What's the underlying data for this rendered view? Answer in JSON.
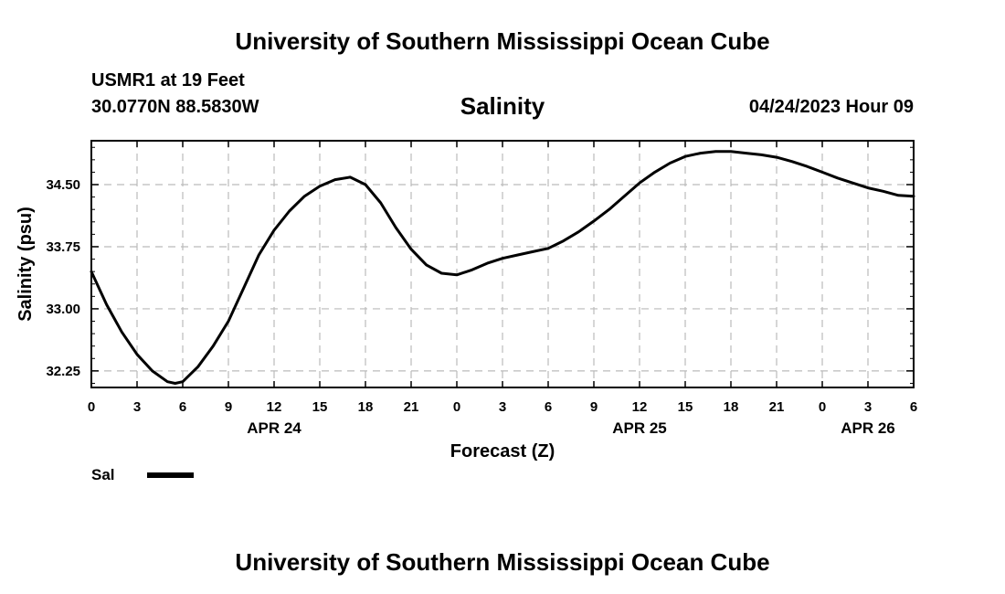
{
  "header": {
    "title": "University of Southern Mississippi Ocean Cube",
    "station": "USMR1 at 19 Feet",
    "coords": "30.0770N  88.5830W",
    "chart_title": "Salinity",
    "datetime": "04/24/2023 Hour 09"
  },
  "footer": {
    "title": "University of Southern Mississippi Ocean Cube"
  },
  "legend": {
    "label": "Sal"
  },
  "colors": {
    "line": "#000000",
    "grid": "#bbbbbb",
    "frame": "#000000"
  },
  "chart_data": {
    "type": "line",
    "title": "Salinity",
    "xlabel": "Forecast (Z)",
    "ylabel": "Salinity (psu)",
    "xlim": [
      0,
      54
    ],
    "ylim": [
      32.05,
      35.03
    ],
    "x_tick_hours": [
      0,
      3,
      6,
      9,
      12,
      15,
      18,
      21,
      24,
      27,
      30,
      33,
      36,
      39,
      42,
      45,
      48,
      51,
      54
    ],
    "x_tick_labels": [
      "0",
      "3",
      "6",
      "9",
      "12",
      "15",
      "18",
      "21",
      "0",
      "3",
      "6",
      "9",
      "12",
      "15",
      "18",
      "21",
      "0",
      "3",
      "6"
    ],
    "date_labels": [
      {
        "hour": 12,
        "text": "APR 24"
      },
      {
        "hour": 36,
        "text": "APR 25"
      },
      {
        "hour": 51,
        "text": "APR 26"
      }
    ],
    "y_ticks": [
      32.25,
      33.0,
      33.75,
      34.5
    ],
    "y_tick_labels": [
      "32.25",
      "33.00",
      "33.75",
      "34.50"
    ],
    "grid": true,
    "legend_position": "bottom-left",
    "series": [
      {
        "name": "Sal",
        "x": [
          0,
          1,
          2,
          3,
          4,
          5,
          5.5,
          6,
          7,
          8,
          9,
          10,
          11,
          12,
          13,
          14,
          15,
          16,
          17,
          18,
          19,
          20,
          21,
          22,
          23,
          24,
          25,
          26,
          27,
          28,
          29,
          30,
          31,
          32,
          33,
          34,
          35,
          36,
          37,
          38,
          39,
          40,
          41,
          42,
          43,
          44,
          45,
          46,
          47,
          48,
          49,
          50,
          51,
          52,
          53,
          54
        ],
        "values": [
          33.45,
          33.05,
          32.72,
          32.45,
          32.25,
          32.12,
          32.1,
          32.12,
          32.3,
          32.55,
          32.85,
          33.25,
          33.65,
          33.95,
          34.18,
          34.36,
          34.48,
          34.56,
          34.59,
          34.5,
          34.28,
          33.98,
          33.72,
          33.53,
          33.43,
          33.41,
          33.47,
          33.55,
          33.61,
          33.65,
          33.69,
          33.73,
          33.82,
          33.93,
          34.06,
          34.2,
          34.36,
          34.52,
          34.65,
          34.76,
          34.84,
          34.88,
          34.9,
          34.9,
          34.88,
          34.86,
          34.83,
          34.78,
          34.72,
          34.65,
          34.58,
          34.52,
          34.46,
          34.42,
          34.37,
          34.36
        ]
      }
    ]
  }
}
